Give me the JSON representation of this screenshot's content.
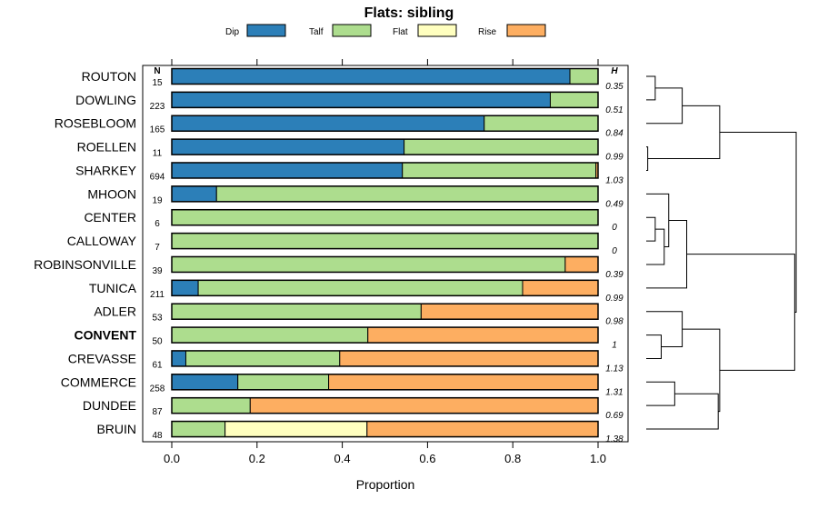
{
  "chart_data": {
    "type": "stacked-bar",
    "title": "Flats: sibling",
    "xlabel": "Proportion",
    "xlim": [
      0,
      1
    ],
    "x_ticks": [
      "0.0",
      "0.2",
      "0.4",
      "0.6",
      "0.8",
      "1.0"
    ],
    "x_tick_values": [
      0,
      0.2,
      0.4,
      0.6,
      0.8,
      1.0
    ],
    "n_header": "N",
    "h_header": "H",
    "legend": [
      {
        "name": "Dip",
        "color": "#2c7fb8"
      },
      {
        "name": "Talf",
        "color": "#addd8e"
      },
      {
        "name": "Flat",
        "color": "#ffffbf"
      },
      {
        "name": "Rise",
        "color": "#fdae61"
      }
    ],
    "rows": [
      {
        "label": "ROUTON",
        "n": "15",
        "h": "0.35",
        "bold": false,
        "values": [
          0.934,
          0.066,
          0,
          0
        ]
      },
      {
        "label": "DOWLING",
        "n": "223",
        "h": "0.51",
        "bold": false,
        "values": [
          0.888,
          0.112,
          0,
          0
        ]
      },
      {
        "label": "ROSEBLOOM",
        "n": "165",
        "h": "0.84",
        "bold": false,
        "values": [
          0.733,
          0.267,
          0,
          0
        ]
      },
      {
        "label": "ROELLEN",
        "n": "11",
        "h": "0.99",
        "bold": false,
        "values": [
          0.545,
          0.455,
          0,
          0
        ]
      },
      {
        "label": "SHARKEY",
        "n": "694",
        "h": "1.03",
        "bold": false,
        "values": [
          0.541,
          0.454,
          0,
          0.005
        ]
      },
      {
        "label": "MHOON",
        "n": "19",
        "h": "0.49",
        "bold": false,
        "values": [
          0.105,
          0.895,
          0,
          0
        ]
      },
      {
        "label": "CENTER",
        "n": "6",
        "h": "0",
        "bold": false,
        "values": [
          0,
          1,
          0,
          0
        ]
      },
      {
        "label": "CALLOWAY",
        "n": "7",
        "h": "0",
        "bold": false,
        "values": [
          0,
          1,
          0,
          0
        ]
      },
      {
        "label": "ROBINSONVILLE",
        "n": "39",
        "h": "0.39",
        "bold": false,
        "values": [
          0,
          0.923,
          0,
          0.077
        ]
      },
      {
        "label": "TUNICA",
        "n": "211",
        "h": "0.99",
        "bold": false,
        "values": [
          0.062,
          0.761,
          0,
          0.177
        ]
      },
      {
        "label": "ADLER",
        "n": "53",
        "h": "0.98",
        "bold": false,
        "values": [
          0,
          0.585,
          0,
          0.415
        ]
      },
      {
        "label": "CONVENT",
        "n": "50",
        "h": "1",
        "bold": true,
        "values": [
          0,
          0.46,
          0,
          0.54
        ]
      },
      {
        "label": "CREVASSE",
        "n": "61",
        "h": "1.13",
        "bold": false,
        "values": [
          0.033,
          0.361,
          0,
          0.606
        ]
      },
      {
        "label": "COMMERCE",
        "n": "258",
        "h": "1.31",
        "bold": false,
        "values": [
          0.155,
          0.213,
          0,
          0.632
        ]
      },
      {
        "label": "DUNDEE",
        "n": "87",
        "h": "0.69",
        "bold": false,
        "values": [
          0,
          0.184,
          0,
          0.816
        ]
      },
      {
        "label": "BRUIN",
        "n": "48",
        "h": "1.38",
        "bold": false,
        "values": [
          0,
          0.125,
          0.333,
          0.542
        ]
      }
    ],
    "dendrogram": {
      "note": "hierarchical clustering of rows; merge heights in relative units (0 = leaf level, 1 = root)",
      "leaves_order": [
        0,
        1,
        2,
        3,
        4,
        5,
        6,
        7,
        8,
        9,
        10,
        11,
        12,
        13,
        14,
        15
      ],
      "merges": [
        {
          "id": "m1",
          "children": [
            "L0",
            "L1"
          ],
          "height": 0.06
        },
        {
          "id": "m2",
          "children": [
            "m1",
            "L2"
          ],
          "height": 0.24
        },
        {
          "id": "m3",
          "children": [
            "L3",
            "L4"
          ],
          "height": 0.01
        },
        {
          "id": "m4",
          "children": [
            "m2",
            "m3"
          ],
          "height": 0.49
        },
        {
          "id": "m5",
          "children": [
            "L6",
            "L7"
          ],
          "height": 0.06
        },
        {
          "id": "m6",
          "children": [
            "m5",
            "L8"
          ],
          "height": 0.12
        },
        {
          "id": "m7",
          "children": [
            "L5",
            "m6"
          ],
          "height": 0.15
        },
        {
          "id": "m8",
          "children": [
            "m7",
            "L9"
          ],
          "height": 0.27
        },
        {
          "id": "m9",
          "children": [
            "L11",
            "L12"
          ],
          "height": 0.1
        },
        {
          "id": "m10",
          "children": [
            "L10",
            "m9"
          ],
          "height": 0.24
        },
        {
          "id": "m11",
          "children": [
            "L13",
            "L14"
          ],
          "height": 0.19
        },
        {
          "id": "m12",
          "children": [
            "m11",
            "L15"
          ],
          "height": 0.48
        },
        {
          "id": "m13",
          "children": [
            "m10",
            "m12"
          ],
          "height": 0.49
        },
        {
          "id": "m14",
          "children": [
            "m8",
            "m13"
          ],
          "height": 0.99
        },
        {
          "id": "m15",
          "children": [
            "m4",
            "m14"
          ],
          "height": 1.0
        }
      ]
    }
  }
}
